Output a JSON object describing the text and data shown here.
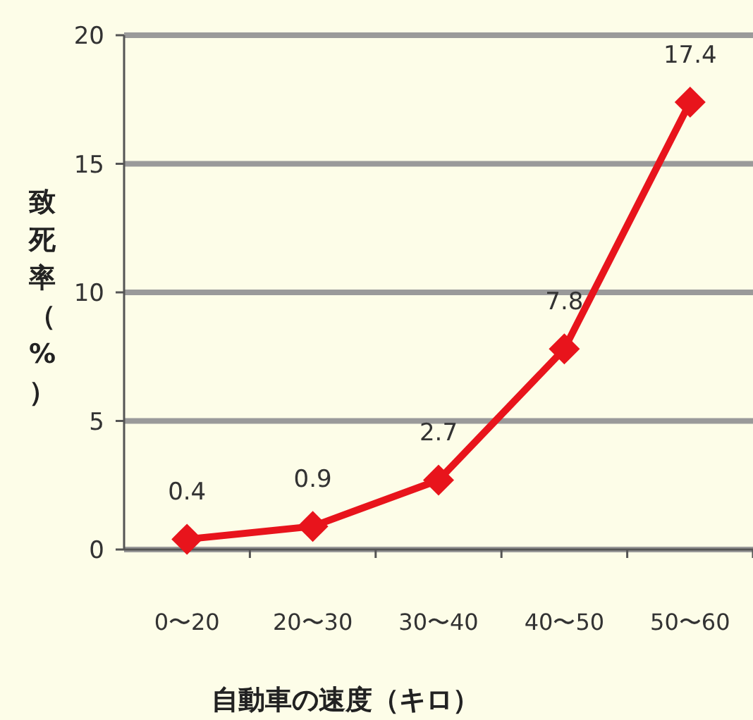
{
  "chart_data": {
    "type": "line",
    "xlabel": "自動車の速度（キロ）",
    "ylabel": "致死率（%）",
    "categories": [
      "0〜20",
      "20〜30",
      "30〜40",
      "40〜50",
      "50〜60"
    ],
    "series": [
      {
        "color": "#e8141c",
        "values": [
          0.4,
          0.9,
          2.7,
          7.8,
          17.4
        ]
      }
    ],
    "ylim": [
      0,
      20
    ],
    "yticks": [
      0,
      5,
      10,
      15,
      20
    ],
    "grid": "y",
    "data_labels": true,
    "marker": "diamond"
  }
}
